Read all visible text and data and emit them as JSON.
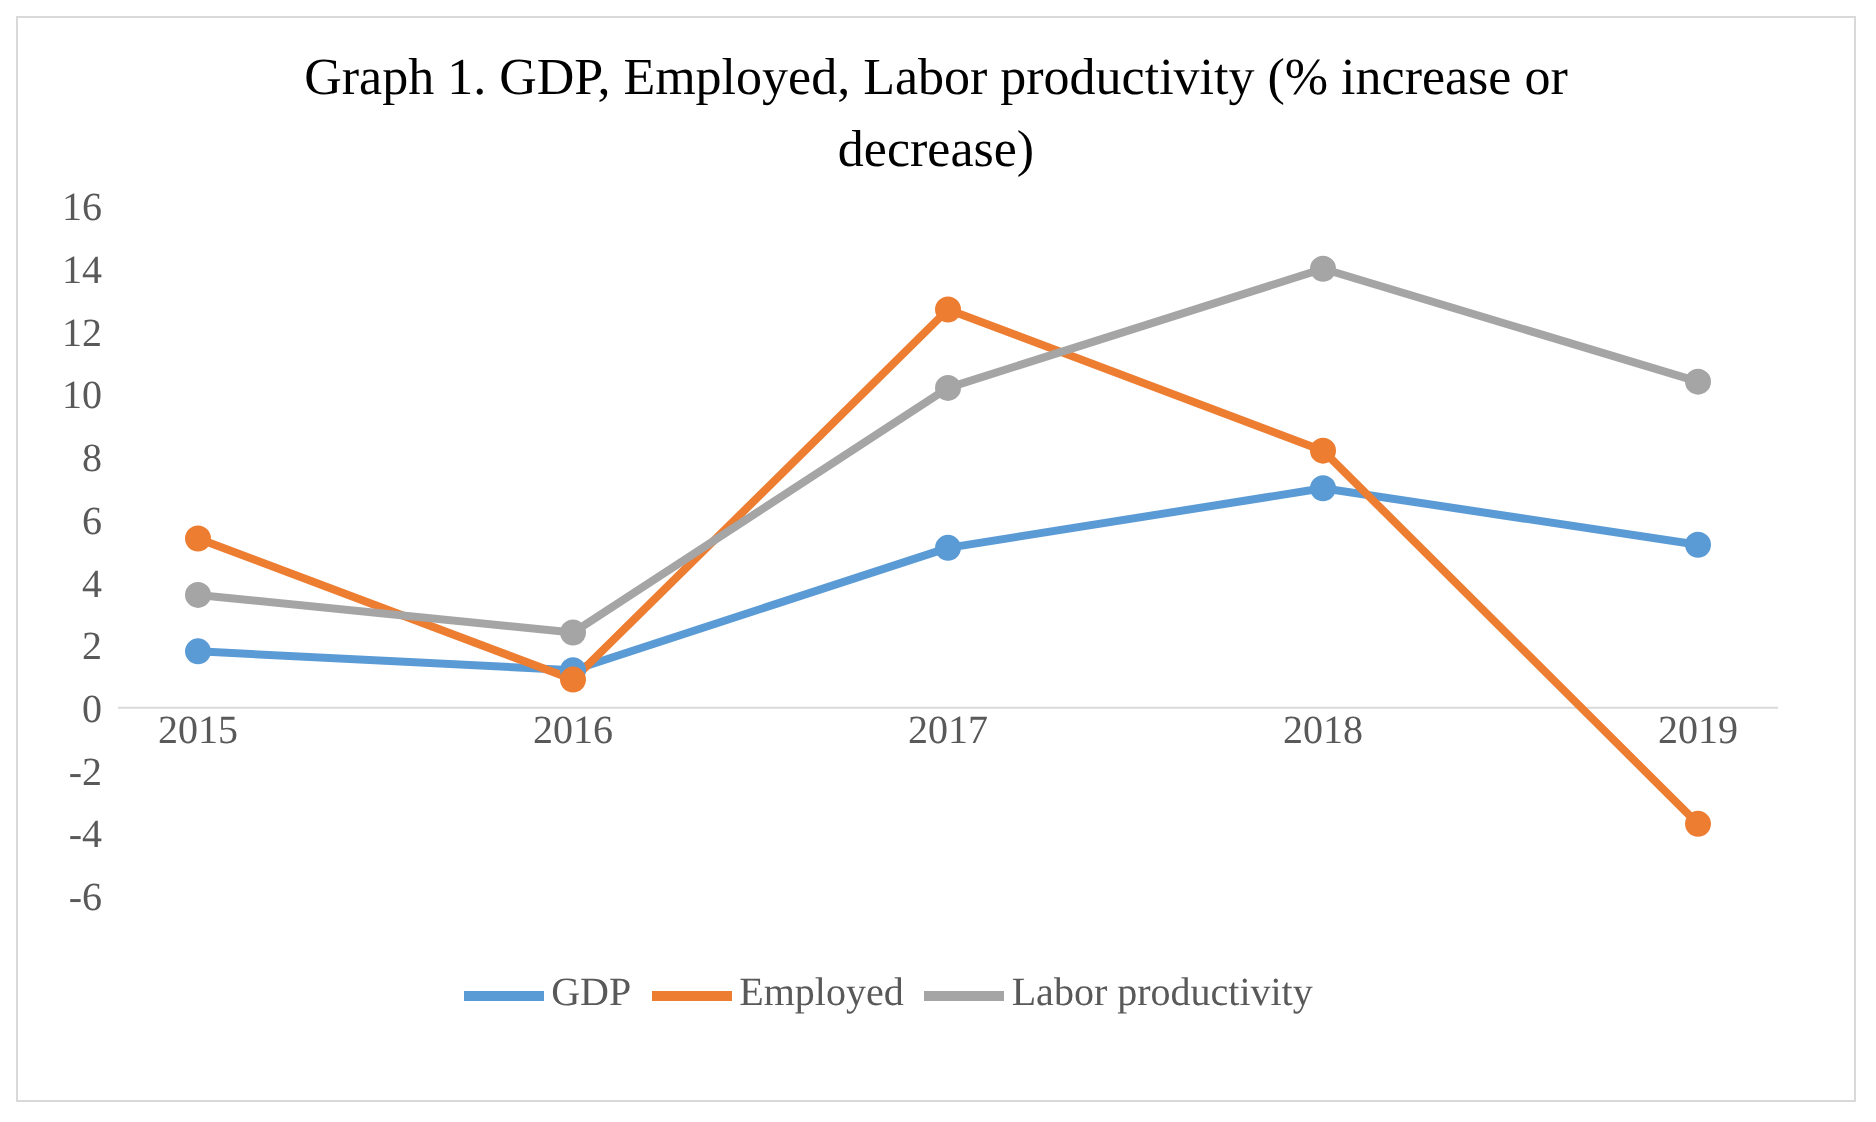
{
  "chart_data": {
    "type": "line",
    "title": "Graph 1. GDP, Employed, Labor productivity (% increase or decrease)",
    "categories": [
      "2015",
      "2016",
      "2017",
      "2018",
      "2019"
    ],
    "series": [
      {
        "name": "GDP",
        "color": "#5b9bd5",
        "values": [
          1.8,
          1.2,
          5.1,
          7.0,
          5.2
        ]
      },
      {
        "name": "Employed",
        "color": "#ed7d31",
        "values": [
          5.4,
          0.9,
          12.7,
          8.2,
          -3.7
        ]
      },
      {
        "name": "Labor productivity",
        "color": "#a5a5a5",
        "values": [
          3.6,
          2.4,
          10.2,
          14.0,
          10.4
        ]
      }
    ],
    "ylim": [
      -6,
      16
    ],
    "yticks": [
      -6,
      -4,
      -2,
      0,
      2,
      4,
      6,
      8,
      10,
      12,
      14,
      16
    ],
    "legend": "bottom",
    "marker": "circle",
    "line_style": "solid"
  }
}
